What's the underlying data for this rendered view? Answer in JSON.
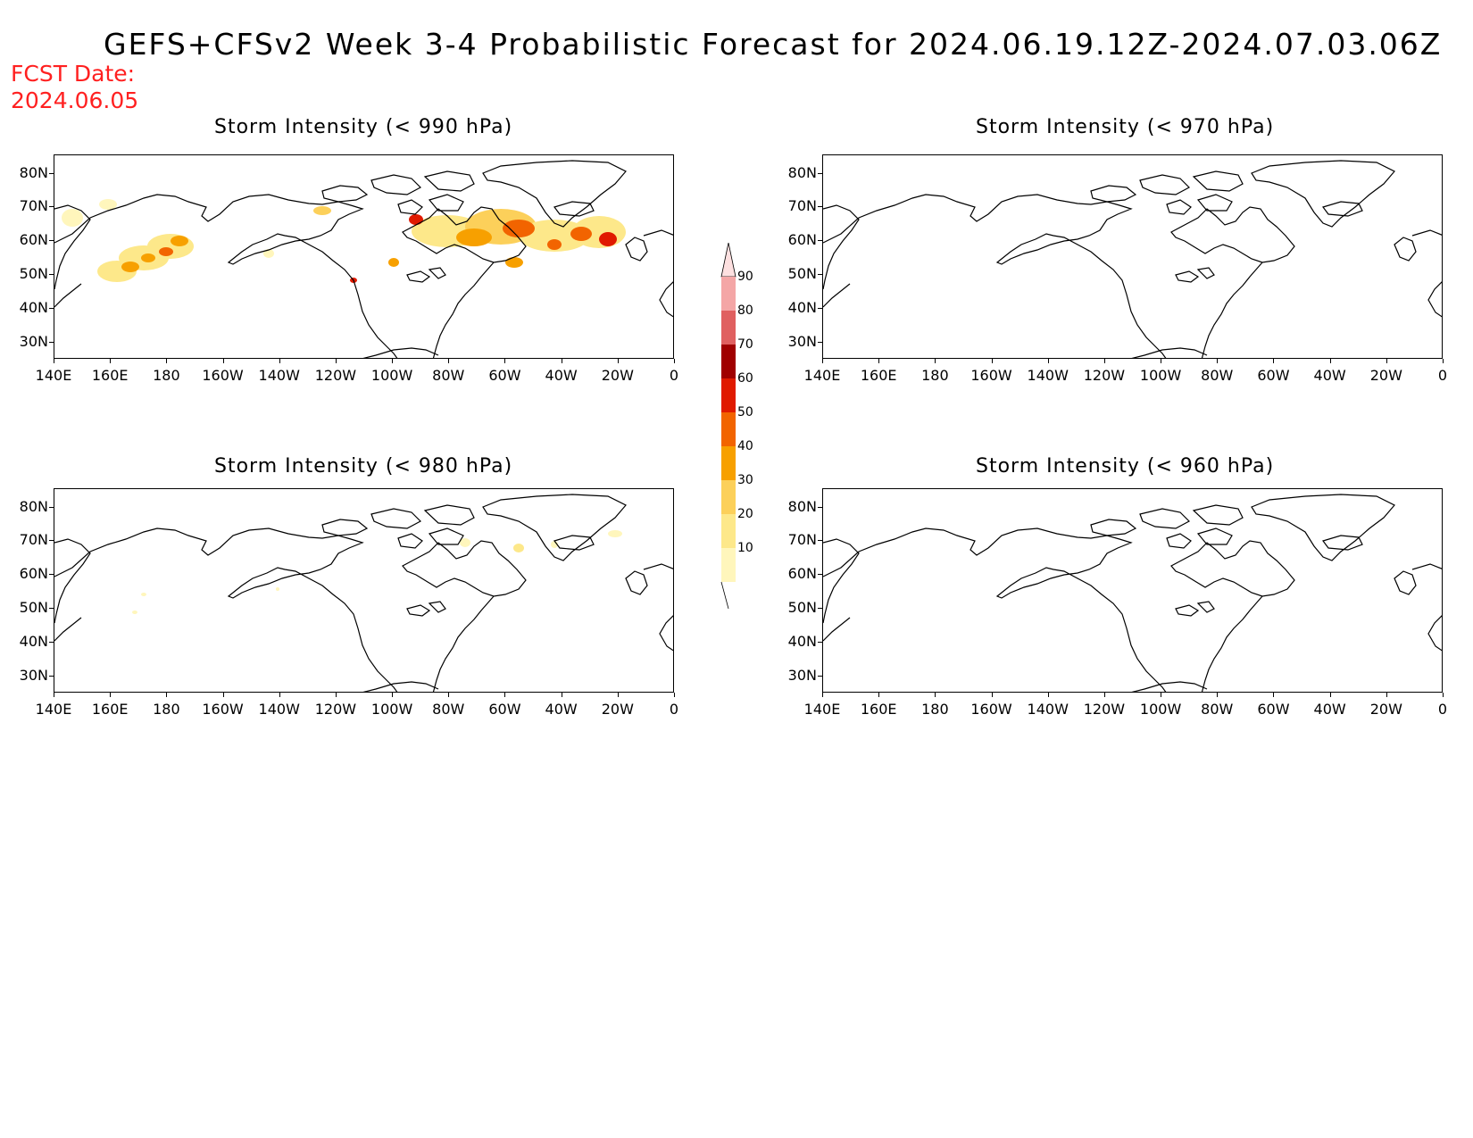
{
  "header": {
    "title": "GEFS+CFSv2 Week 3-4 Probabilistic Forecast for 2024.06.19.12Z-2024.07.03.06Z",
    "fcst_label": "FCST Date:",
    "fcst_date": "2024.06.05"
  },
  "axes": {
    "lat_labels": [
      "80N",
      "70N",
      "60N",
      "50N",
      "40N",
      "30N"
    ],
    "lon_labels": [
      "140E",
      "160E",
      "180",
      "160W",
      "140W",
      "120W",
      "100W",
      "80W",
      "60W",
      "40W",
      "20W",
      "0"
    ]
  },
  "panels": [
    {
      "id": "p990",
      "title": "Storm Intensity (< 990 hPa)",
      "level": "990"
    },
    {
      "id": "p970",
      "title": "Storm Intensity (< 970 hPa)",
      "level": "970"
    },
    {
      "id": "p980",
      "title": "Storm Intensity (< 980 hPa)",
      "level": "980"
    },
    {
      "id": "p960",
      "title": "Storm Intensity (< 960 hPa)",
      "level": "960"
    }
  ],
  "colorbar": {
    "levels": [
      "10",
      "20",
      "30",
      "40",
      "50",
      "60",
      "70",
      "80",
      "90"
    ],
    "colors": [
      "#fff6bc",
      "#fde88a",
      "#fcd05a",
      "#f7a000",
      "#f26400",
      "#e01a00",
      "#a00000",
      "#e06060",
      "#f4a6a6",
      "#fde0e0"
    ]
  },
  "colors": {
    "title_text": "#000000",
    "fcst_text": "#ff2020",
    "coastline": "#000000"
  }
}
